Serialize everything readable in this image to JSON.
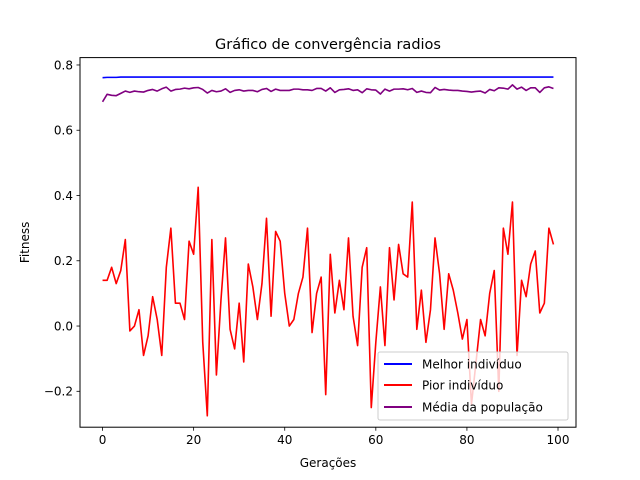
{
  "chart_data": {
    "type": "line",
    "title": "Gráfico de convergência radios",
    "xlabel": "Gerações",
    "ylabel": "Fitness",
    "xlim": [
      -4.95,
      103.95
    ],
    "ylim": [
      -0.31,
      0.8226
    ],
    "x_ticks": [
      0,
      20,
      40,
      60,
      80,
      100
    ],
    "x_tick_labels": [
      "0",
      "20",
      "40",
      "60",
      "80",
      "100"
    ],
    "y_ticks": [
      -0.2,
      0.0,
      0.2,
      0.4,
      0.6,
      0.8
    ],
    "y_tick_labels": [
      "−0.2",
      "0.0",
      "0.2",
      "0.4",
      "0.6",
      "0.8"
    ],
    "grid": false,
    "legend_position": "lower-right",
    "series": [
      {
        "name": "Melhor indivíduo",
        "color": "#0000ff",
        "values": [
          0.761,
          0.762,
          0.762,
          0.762,
          0.763,
          0.763,
          0.763,
          0.763,
          0.763,
          0.763,
          0.763,
          0.763,
          0.763,
          0.763,
          0.763,
          0.763,
          0.763,
          0.763,
          0.763,
          0.763,
          0.763,
          0.763,
          0.763,
          0.763,
          0.763,
          0.763,
          0.763,
          0.763,
          0.763,
          0.763,
          0.763,
          0.763,
          0.763,
          0.763,
          0.763,
          0.763,
          0.763,
          0.763,
          0.763,
          0.763,
          0.763,
          0.763,
          0.763,
          0.763,
          0.763,
          0.763,
          0.763,
          0.763,
          0.763,
          0.763,
          0.763,
          0.763,
          0.763,
          0.763,
          0.763,
          0.763,
          0.763,
          0.763,
          0.763,
          0.763,
          0.763,
          0.763,
          0.763,
          0.763,
          0.763,
          0.763,
          0.763,
          0.763,
          0.763,
          0.763,
          0.763,
          0.763,
          0.763,
          0.763,
          0.763,
          0.763,
          0.763,
          0.763,
          0.763,
          0.763,
          0.763,
          0.763,
          0.763,
          0.763,
          0.763,
          0.763,
          0.763,
          0.763,
          0.763,
          0.763,
          0.763,
          0.763,
          0.763,
          0.763,
          0.763,
          0.763,
          0.763,
          0.763,
          0.763,
          0.763
        ]
      },
      {
        "name": "Pior indivíduo",
        "color": "#ff0000",
        "values": [
          0.14,
          0.14,
          0.18,
          0.13,
          0.17,
          0.265,
          -0.015,
          0.0,
          0.05,
          -0.09,
          -0.03,
          0.09,
          0.02,
          -0.09,
          0.18,
          0.3,
          0.07,
          0.07,
          0.02,
          0.26,
          0.22,
          0.425,
          -0.05,
          -0.275,
          0.265,
          -0.15,
          0.08,
          0.27,
          -0.01,
          -0.07,
          0.07,
          -0.11,
          0.19,
          0.12,
          0.02,
          0.13,
          0.33,
          0.03,
          0.29,
          0.26,
          0.1,
          0.0,
          0.02,
          0.1,
          0.15,
          0.3,
          -0.02,
          0.1,
          0.15,
          -0.21,
          0.22,
          0.04,
          0.14,
          0.05,
          0.27,
          0.03,
          -0.06,
          0.18,
          0.24,
          -0.25,
          -0.05,
          0.12,
          -0.06,
          0.24,
          0.08,
          0.25,
          0.16,
          0.15,
          0.38,
          -0.01,
          0.11,
          -0.05,
          0.05,
          0.27,
          0.16,
          -0.01,
          0.16,
          0.11,
          0.04,
          -0.04,
          0.02,
          -0.24,
          -0.11,
          0.02,
          -0.03,
          0.1,
          0.17,
          -0.2,
          0.3,
          0.22,
          0.38,
          -0.09,
          0.14,
          0.09,
          0.19,
          0.23,
          0.04,
          0.07,
          0.3,
          0.25
        ]
      },
      {
        "name": "Média da população",
        "color": "#800080",
        "values": [
          0.687,
          0.71,
          0.707,
          0.706,
          0.713,
          0.72,
          0.716,
          0.72,
          0.718,
          0.717,
          0.722,
          0.725,
          0.72,
          0.727,
          0.732,
          0.72,
          0.725,
          0.726,
          0.729,
          0.727,
          0.73,
          0.731,
          0.725,
          0.714,
          0.722,
          0.718,
          0.72,
          0.727,
          0.716,
          0.722,
          0.724,
          0.72,
          0.722,
          0.722,
          0.718,
          0.725,
          0.728,
          0.719,
          0.726,
          0.722,
          0.722,
          0.722,
          0.726,
          0.726,
          0.724,
          0.724,
          0.722,
          0.728,
          0.728,
          0.72,
          0.73,
          0.716,
          0.724,
          0.725,
          0.727,
          0.722,
          0.724,
          0.715,
          0.727,
          0.724,
          0.723,
          0.711,
          0.726,
          0.72,
          0.726,
          0.726,
          0.727,
          0.724,
          0.728,
          0.716,
          0.72,
          0.716,
          0.715,
          0.731,
          0.723,
          0.725,
          0.723,
          0.722,
          0.722,
          0.72,
          0.719,
          0.717,
          0.719,
          0.72,
          0.714,
          0.725,
          0.721,
          0.73,
          0.729,
          0.726,
          0.739,
          0.726,
          0.732,
          0.722,
          0.73,
          0.73,
          0.716,
          0.73,
          0.733,
          0.728
        ]
      }
    ]
  }
}
